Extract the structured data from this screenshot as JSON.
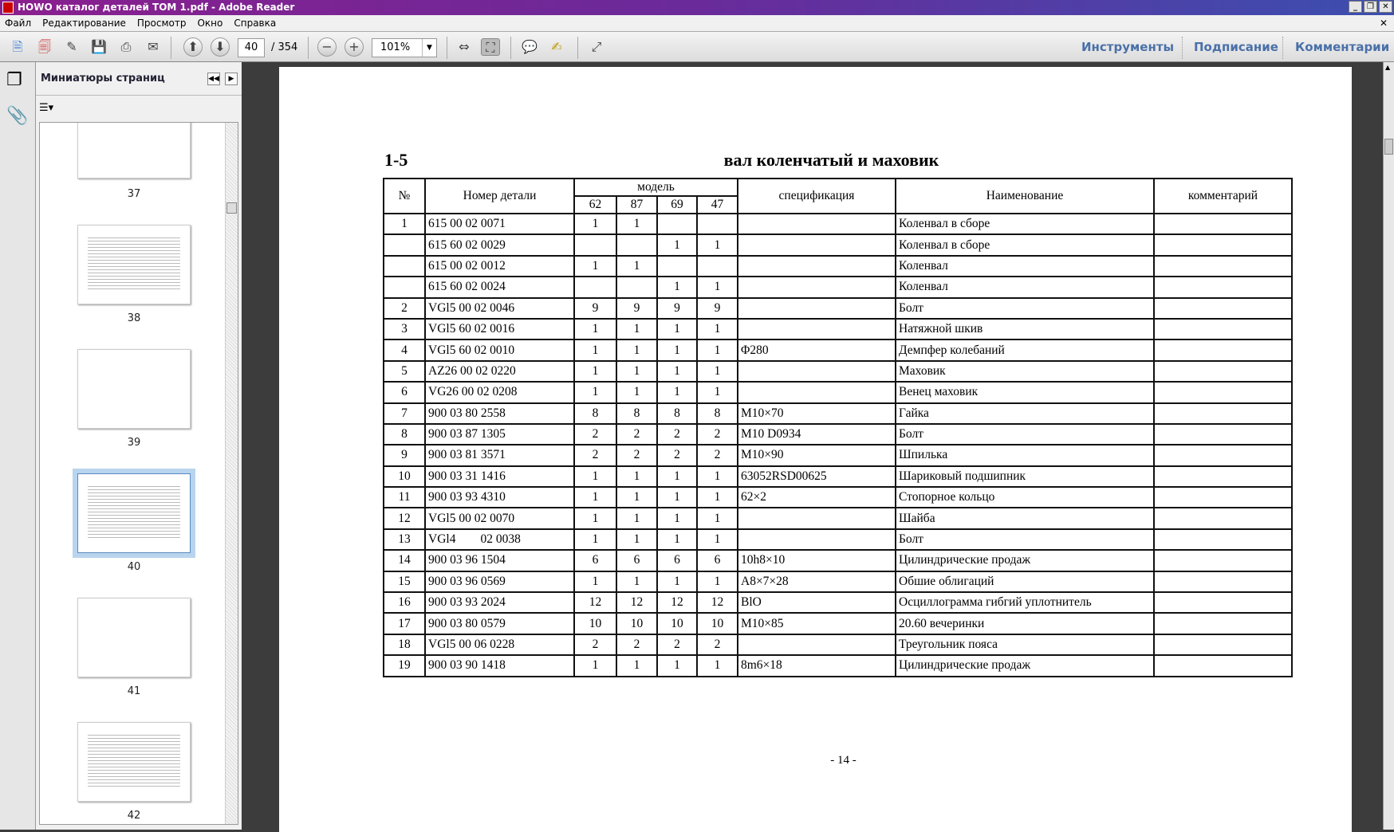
{
  "window": {
    "title": "HOWO каталог деталей TOM 1.pdf - Adobe Reader"
  },
  "menu": [
    "Файл",
    "Редактирование",
    "Просмотр",
    "Окно",
    "Справка"
  ],
  "toolbar": {
    "page_current": "40",
    "page_total": "/ 354",
    "zoom": "101%",
    "links": [
      "Инструменты",
      "Подписание",
      "Комментарии"
    ]
  },
  "panel": {
    "title": "Миниатюры страниц",
    "thumbnails": [
      "37",
      "38",
      "39",
      "40",
      "41",
      "42"
    ],
    "selected": "40"
  },
  "document": {
    "section_no": "1-5",
    "section_title": "вал коленчатый и маховик",
    "headers": {
      "no": "№",
      "part": "Номер детали",
      "model": "модель",
      "models": [
        "62",
        "87",
        "69",
        "47"
      ],
      "spec": "спецификация",
      "name": "Наименование",
      "comment": "комментарий"
    },
    "rows": [
      [
        "1",
        "615 00 02 0071",
        "1",
        "1",
        "",
        "",
        "",
        "Коленвал в сборе",
        ""
      ],
      [
        "",
        "615 60 02 0029",
        "",
        "",
        "1",
        "1",
        "",
        "Коленвал в сборе",
        ""
      ],
      [
        "",
        "615 00 02 0012",
        "1",
        "1",
        "",
        "",
        "",
        "Коленвал",
        ""
      ],
      [
        "",
        "615 60 02 0024",
        "",
        "",
        "1",
        "1",
        "",
        "Коленвал",
        ""
      ],
      [
        "2",
        "VGl5 00 02 0046",
        "9",
        "9",
        "9",
        "9",
        "",
        "Болт",
        ""
      ],
      [
        "3",
        "VGl5 60 02 0016",
        "1",
        "1",
        "1",
        "1",
        "",
        "Натяжной шкив",
        ""
      ],
      [
        "4",
        "VGl5 60 02 0010",
        "1",
        "1",
        "1",
        "1",
        "Φ280",
        "Демпфер колебаний",
        ""
      ],
      [
        "5",
        "AZ26 00 02 0220",
        "1",
        "1",
        "1",
        "1",
        "",
        "Маховик",
        ""
      ],
      [
        "6",
        "VG26 00 02 0208",
        "1",
        "1",
        "1",
        "1",
        "",
        "Венец маховик",
        ""
      ],
      [
        "7",
        "900 03 80 2558",
        "8",
        "8",
        "8",
        "8",
        "M10×70",
        "Гайка",
        ""
      ],
      [
        "8",
        "900 03 87 1305",
        "2",
        "2",
        "2",
        "2",
        "M10 D0934",
        "Болт",
        ""
      ],
      [
        "9",
        "900 03 81 3571",
        "2",
        "2",
        "2",
        "2",
        "M10×90",
        "Шпилька",
        ""
      ],
      [
        "10",
        "900 03 31 1416",
        "1",
        "1",
        "1",
        "1",
        "63052RSD00625",
        "Шариковый подшипник",
        ""
      ],
      [
        "11",
        "900 03 93 4310",
        "1",
        "1",
        "1",
        "1",
        "62×2",
        "Стопорное кольцо",
        ""
      ],
      [
        "12",
        "VGl5 00 02 0070",
        "1",
        "1",
        "1",
        "1",
        "",
        "Шайба",
        ""
      ],
      [
        "13",
        "VGl4        02 0038",
        "1",
        "1",
        "1",
        "1",
        "",
        "Болт",
        ""
      ],
      [
        "14",
        "900 03 96 1504",
        "6",
        "6",
        "6",
        "6",
        "10h8×10",
        "Цилиндрические продаж",
        ""
      ],
      [
        "15",
        "900 03 96 0569",
        "1",
        "1",
        "1",
        "1",
        "A8×7×28",
        "Обшие облигаций",
        ""
      ],
      [
        "16",
        "900 03 93 2024",
        "12",
        "12",
        "12",
        "12",
        "BlO",
        "Осциллограмма гибгий уплотнитель",
        ""
      ],
      [
        "17",
        "900 03 80 0579",
        "10",
        "10",
        "10",
        "10",
        "M10×85",
        "20.60 вечеринки",
        ""
      ],
      [
        "18",
        "VGl5 00 06 0228",
        "2",
        "2",
        "2",
        "2",
        "",
        "Треугольник пояса",
        ""
      ],
      [
        "19",
        "900 03 90 1418",
        "1",
        "1",
        "1",
        "1",
        "8m6×18",
        "Цилиндрические продаж",
        ""
      ]
    ],
    "page_label": "- 14 -"
  }
}
